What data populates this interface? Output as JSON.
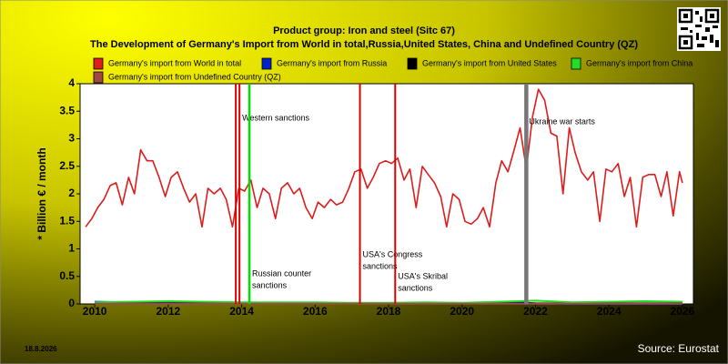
{
  "chart_data": {
    "type": "line",
    "title": "Product group: Iron and steel (Sitc 67)",
    "subtitle": "The Development of Germany's Import from World in total,Russia,United States, China and Undefined Country (QZ)",
    "y_label": "* Billion € / month",
    "date": "18.8.2026",
    "source": "Source: Eurostat",
    "xlim": [
      2009.6,
      2026.3
    ],
    "xticks": [
      2010,
      2012,
      2014,
      2016,
      2018,
      2020,
      2022,
      2024,
      2026
    ],
    "ylim": [
      0,
      4
    ],
    "yticks": [
      0,
      0.5,
      1,
      1.5,
      2,
      2.5,
      3,
      3.5,
      4
    ],
    "series": [
      {
        "name": "Germany's import from World in total",
        "color": "#dd1c1c",
        "x": [
          2009.75,
          2009.92,
          2010.08,
          2010.25,
          2010.42,
          2010.58,
          2010.75,
          2010.92,
          2011.08,
          2011.25,
          2011.42,
          2011.58,
          2011.75,
          2011.92,
          2012.08,
          2012.25,
          2012.42,
          2012.58,
          2012.75,
          2012.92,
          2013.08,
          2013.25,
          2013.42,
          2013.58,
          2013.75,
          2013.92,
          2014.08,
          2014.25,
          2014.42,
          2014.58,
          2014.75,
          2014.92,
          2015.08,
          2015.25,
          2015.42,
          2015.58,
          2015.75,
          2015.92,
          2016.08,
          2016.25,
          2016.42,
          2016.58,
          2016.75,
          2016.92,
          2017.08,
          2017.25,
          2017.42,
          2017.58,
          2017.75,
          2017.92,
          2018.08,
          2018.25,
          2018.42,
          2018.58,
          2018.75,
          2018.92,
          2019.08,
          2019.25,
          2019.42,
          2019.58,
          2019.75,
          2019.92,
          2020.08,
          2020.25,
          2020.42,
          2020.58,
          2020.75,
          2020.92,
          2021.08,
          2021.25,
          2021.42,
          2021.58,
          2021.75,
          2021.92,
          2022.08,
          2022.25,
          2022.42,
          2022.58,
          2022.75,
          2022.92,
          2023.08,
          2023.25,
          2023.42,
          2023.58,
          2023.75,
          2023.92,
          2024.08,
          2024.25,
          2024.42,
          2024.58,
          2024.75,
          2024.92,
          2025.08,
          2025.25,
          2025.42,
          2025.58,
          2025.75,
          2025.92,
          2026.0
        ],
        "values": [
          1.4,
          1.55,
          1.75,
          1.9,
          2.15,
          2.2,
          1.8,
          2.3,
          2.0,
          2.8,
          2.6,
          2.6,
          2.3,
          1.95,
          2.3,
          2.4,
          2.1,
          1.85,
          2.0,
          1.4,
          2.1,
          2.0,
          2.1,
          1.9,
          1.4,
          2.1,
          2.05,
          2.25,
          1.75,
          2.1,
          2.0,
          1.55,
          2.1,
          2.2,
          2.0,
          2.1,
          1.75,
          1.55,
          1.85,
          1.75,
          1.9,
          1.8,
          1.85,
          2.1,
          2.4,
          2.45,
          2.1,
          2.3,
          2.55,
          2.6,
          2.55,
          2.65,
          2.25,
          2.45,
          1.75,
          2.5,
          2.35,
          2.2,
          1.95,
          1.4,
          2.0,
          1.9,
          1.5,
          1.45,
          1.55,
          1.75,
          1.4,
          2.2,
          2.6,
          2.4,
          2.8,
          3.2,
          2.45,
          3.4,
          3.9,
          3.7,
          3.1,
          3.05,
          2.0,
          3.2,
          2.75,
          2.4,
          2.25,
          2.4,
          1.5,
          2.45,
          2.4,
          2.55,
          1.95,
          2.3,
          1.4,
          2.3,
          2.35,
          2.35,
          1.95,
          2.4,
          1.6,
          2.4,
          2.2
        ]
      },
      {
        "name": "Germany's import from Russia",
        "color": "#0022cc",
        "x": [
          2010,
          2011,
          2012,
          2013,
          2014,
          2015,
          2016,
          2017,
          2018,
          2019,
          2020,
          2021,
          2021.3,
          2022,
          2023,
          2024,
          2025,
          2026
        ],
        "values": [
          0.04,
          0.03,
          0.02,
          0.02,
          0.02,
          0.01,
          0.01,
          0.01,
          0.01,
          0.01,
          0.01,
          0.02,
          0.04,
          0.01,
          0,
          0,
          0,
          0
        ]
      },
      {
        "name": "Germany's import from United States",
        "color": "#000000",
        "x": [
          2010,
          2012,
          2014,
          2016,
          2018,
          2020,
          2022,
          2024,
          2026
        ],
        "values": [
          0.01,
          0.01,
          0.01,
          0.01,
          0.01,
          0.01,
          0.01,
          0.01,
          0.01
        ]
      },
      {
        "name": "Germany's import from China",
        "color": "#22dd22",
        "x": [
          2010,
          2011,
          2012,
          2013,
          2014,
          2015,
          2016,
          2017,
          2018,
          2019,
          2020,
          2021,
          2022,
          2023,
          2024,
          2025,
          2026
        ],
        "values": [
          0.03,
          0.04,
          0.05,
          0.04,
          0.03,
          0.03,
          0.03,
          0.02,
          0.02,
          0.03,
          0.02,
          0.04,
          0.06,
          0.03,
          0.04,
          0.05,
          0.04
        ]
      },
      {
        "name": "Germany's import from Undefined Country (QZ)",
        "color": "#a04848",
        "x": [
          2010,
          2014,
          2018,
          2022,
          2026
        ],
        "values": [
          0.005,
          0.005,
          0.005,
          0.005,
          0.005
        ]
      }
    ],
    "events": [
      {
        "x": 2013.84,
        "color": "#dd0000"
      },
      {
        "x": 2013.94,
        "color": "#dd0000",
        "label": [
          "Western sanctions"
        ]
      },
      {
        "x": 2014.21,
        "color": "#00e000",
        "label": [
          "Russian counter",
          "sanctions"
        ]
      },
      {
        "x": 2017.22,
        "color": "#dd0000",
        "label": [
          "USA's Congress",
          "sanctions"
        ]
      },
      {
        "x": 2018.18,
        "color": "#dd0000",
        "label": [
          "USA's Skribal",
          "sanctions"
        ]
      },
      {
        "x": 2021.75,
        "color": "#777777",
        "label": [
          "Ukraine war starts"
        ]
      }
    ]
  }
}
